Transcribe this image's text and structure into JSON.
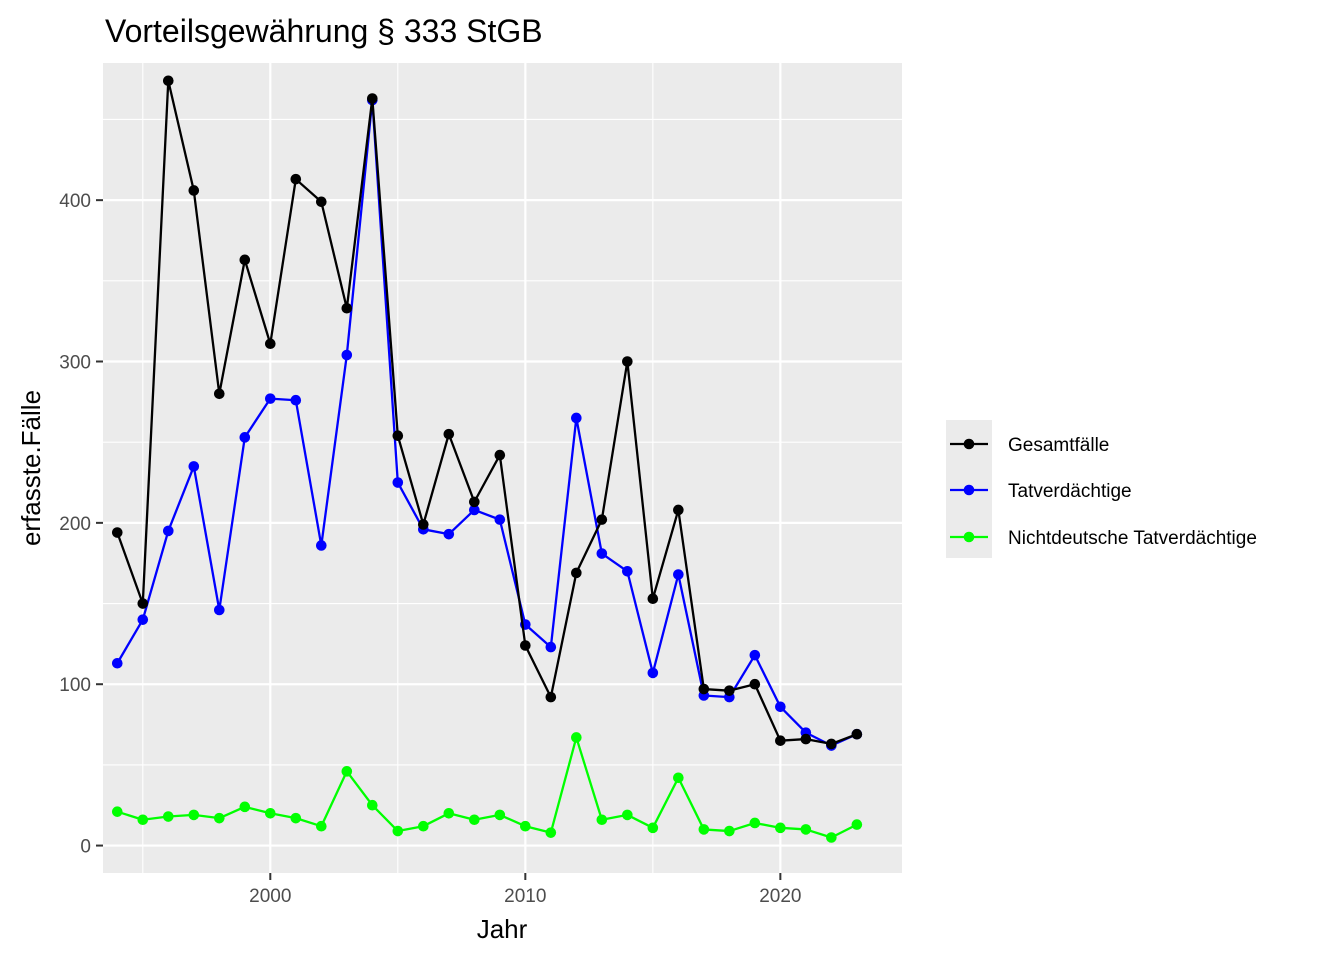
{
  "chart_data": {
    "type": "line",
    "title": "Vorteilsgewährung § 333 StGB",
    "xlabel": "Jahr",
    "ylabel": "erfasste.Fälle",
    "x": [
      1994,
      1995,
      1996,
      1997,
      1998,
      1999,
      2000,
      2001,
      2002,
      2003,
      2004,
      2005,
      2006,
      2007,
      2008,
      2009,
      2010,
      2011,
      2012,
      2013,
      2014,
      2015,
      2016,
      2017,
      2018,
      2019,
      2020,
      2021,
      2022,
      2023
    ],
    "xlim": [
      1993.44,
      2024.77
    ],
    "ylim": [
      -17,
      485
    ],
    "x_ticks": [
      2000,
      2010,
      2020
    ],
    "y_ticks": [
      0,
      100,
      200,
      300,
      400
    ],
    "x_tick_labels": [
      "2000",
      "2010",
      "2020"
    ],
    "y_tick_labels": [
      "0",
      "100",
      "200",
      "300",
      "400"
    ],
    "grid": true,
    "legend_position": "right",
    "series": [
      {
        "name": "Gesamtfälle",
        "color": "#000000",
        "values": [
          194,
          150,
          474,
          406,
          280,
          363,
          311,
          413,
          399,
          333,
          463,
          254,
          199,
          255,
          213,
          242,
          124,
          92,
          169,
          202,
          300,
          153,
          208,
          97,
          96,
          100,
          65,
          66,
          63,
          69
        ]
      },
      {
        "name": "Tatverdächtige",
        "color": "#0000ff",
        "values": [
          113,
          140,
          195,
          235,
          146,
          253,
          277,
          276,
          186,
          304,
          462,
          225,
          196,
          193,
          208,
          202,
          137,
          123,
          265,
          181,
          170,
          107,
          168,
          93,
          92,
          118,
          86,
          70,
          62,
          69
        ]
      },
      {
        "name": "Nichtdeutsche Tatverdächtige",
        "color": "#00ff00",
        "values": [
          21,
          16,
          18,
          19,
          17,
          24,
          20,
          17,
          12,
          46,
          25,
          9,
          12,
          20,
          16,
          19,
          12,
          8,
          67,
          16,
          19,
          11,
          42,
          10,
          9,
          14,
          11,
          10,
          5,
          13
        ]
      }
    ]
  }
}
